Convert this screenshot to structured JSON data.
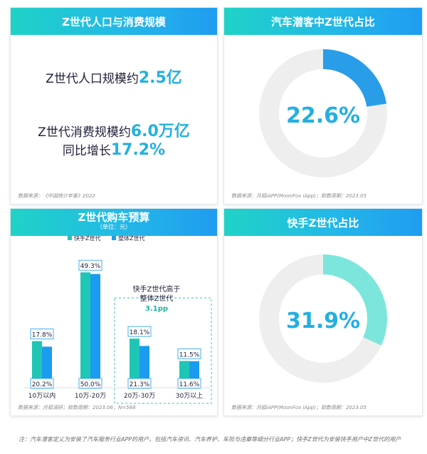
{
  "panel1": {
    "title": "Z世代人口与消费规模",
    "line1_text": "Z世代人口规模约",
    "line1_value": "2.5亿",
    "line2_text": "Z世代消费规模约",
    "line2_value": "6.0万亿",
    "line3_text": "同比增长",
    "line3_value": "17.2%",
    "source": "数据来源：《中国统计年鉴》2022"
  },
  "panel2": {
    "title": "汽车潜客中Z世代占比",
    "value_label": "22.6%",
    "fraction": 0.226,
    "ring_color": "#2a9de8",
    "ring_bg": "#eeeeee",
    "source": "数据来源：月狐iAPP(MoonFox iApp)；取数周期：2023.05"
  },
  "panel3": {
    "title": "Z世代购车预算",
    "subtitle": "（单位：元）",
    "source": "数据来源：月狐调研；取数周期：2023.06，N=568",
    "callout_line1": "快手Z世代高于",
    "callout_line2": "整体Z世代",
    "callout_value": "3.1pp"
  },
  "panel4": {
    "title": "快手Z世代占比",
    "value_label": "31.9%",
    "fraction": 0.319,
    "ring_color": "#7ce6dc",
    "ring_bg": "#eeeeee",
    "source": "数据来源：月狐iAPP(MoonFox iApp)；取数周期：2023.05"
  },
  "note": "注：汽车潜客定义为安装了汽车服务行业APP的用户，包括汽车资讯、汽车养护、车险与违章等细分行业APP；快手Z世代为安装快手用户中Z世代的用户",
  "colors": {
    "kuaishou": "#1fc6b6",
    "overall": "#1a9cf0",
    "accent": "#22b0e0"
  },
  "chart_data": {
    "type": "bar",
    "categories": [
      "10万以内",
      "10万-20万",
      "20万-30万",
      "30万以上"
    ],
    "series": [
      {
        "name": "快手Z世代",
        "values": [
          20.2,
          50.0,
          21.3,
          11.6
        ],
        "labels": [
          "20.2%",
          "50.0%",
          "21.3%",
          "11.6%"
        ]
      },
      {
        "name": "整体Z世代",
        "values": [
          17.8,
          49.3,
          18.1,
          11.5
        ],
        "labels": [
          "17.8%",
          "49.3%",
          "18.1%",
          "11.5%"
        ]
      }
    ],
    "title": "Z世代购车预算",
    "ylim": [
      0,
      55
    ],
    "legend_position": "top-center",
    "grid": false
  }
}
